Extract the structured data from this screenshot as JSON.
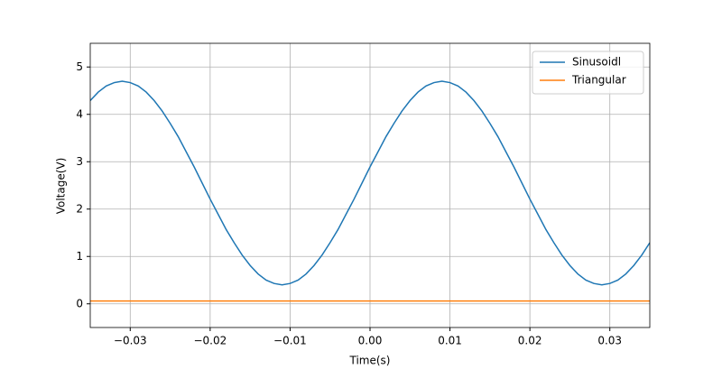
{
  "chart_data": {
    "type": "line",
    "xlabel": "Time(s)",
    "ylabel": "Voltage(V)",
    "xlim": [
      -0.035,
      0.035
    ],
    "ylim": [
      -0.5,
      5.5
    ],
    "xticks": [
      {
        "value": -0.03,
        "label": "−0.03"
      },
      {
        "value": -0.02,
        "label": "−0.02"
      },
      {
        "value": -0.01,
        "label": "−0.01"
      },
      {
        "value": 0,
        "label": "0.00"
      },
      {
        "value": 0.01,
        "label": "0.01"
      },
      {
        "value": 0.02,
        "label": "0.02"
      },
      {
        "value": 0.03,
        "label": "0.03"
      }
    ],
    "yticks": [
      0,
      1,
      2,
      3,
      4,
      5
    ],
    "grid": true,
    "legend": "upper right",
    "series": [
      {
        "name": "Sinusoidl",
        "color": "#1f77b4",
        "x": [
          -0.035,
          -0.034,
          -0.033,
          -0.032,
          -0.031,
          -0.03,
          -0.029,
          -0.028,
          -0.027,
          -0.026,
          -0.025,
          -0.024,
          -0.023,
          -0.022,
          -0.021,
          -0.02,
          -0.019,
          -0.018,
          -0.017,
          -0.016,
          -0.015,
          -0.014,
          -0.013,
          -0.012,
          -0.011,
          -0.01,
          -0.009,
          -0.008,
          -0.007,
          -0.006,
          -0.005,
          -0.004,
          -0.003,
          -0.002,
          -0.001,
          0,
          0.001,
          0.002,
          0.003,
          0.004,
          0.005,
          0.006,
          0.007,
          0.008,
          0.009,
          0.01,
          0.011,
          0.012,
          0.013,
          0.014,
          0.015,
          0.016,
          0.017,
          0.018,
          0.019,
          0.02,
          0.021,
          0.022,
          0.023,
          0.024,
          0.025,
          0.026,
          0.027,
          0.028,
          0.029,
          0.03,
          0.031,
          0.032,
          0.033,
          0.034,
          0.035
        ],
        "values": [
          4.29,
          4.47,
          4.6,
          4.67,
          4.7,
          4.67,
          4.6,
          4.47,
          4.29,
          4.07,
          3.81,
          3.53,
          3.21,
          2.89,
          2.55,
          2.21,
          1.89,
          1.57,
          1.29,
          1.03,
          0.81,
          0.63,
          0.5,
          0.43,
          0.4,
          0.43,
          0.5,
          0.63,
          0.81,
          1.03,
          1.29,
          1.57,
          1.89,
          2.21,
          2.55,
          2.89,
          3.21,
          3.53,
          3.81,
          4.07,
          4.29,
          4.47,
          4.6,
          4.67,
          4.7,
          4.67,
          4.6,
          4.47,
          4.29,
          4.07,
          3.81,
          3.53,
          3.21,
          2.89,
          2.55,
          2.21,
          1.89,
          1.57,
          1.29,
          1.03,
          0.81,
          0.63,
          0.5,
          0.43,
          0.4,
          0.43,
          0.5,
          0.63,
          0.81,
          1.03,
          1.29
        ]
      },
      {
        "name": "Triangular",
        "color": "#ff7f0e",
        "x": [
          -0.035,
          0.035
        ],
        "values": [
          0.06,
          0.06
        ]
      }
    ]
  }
}
